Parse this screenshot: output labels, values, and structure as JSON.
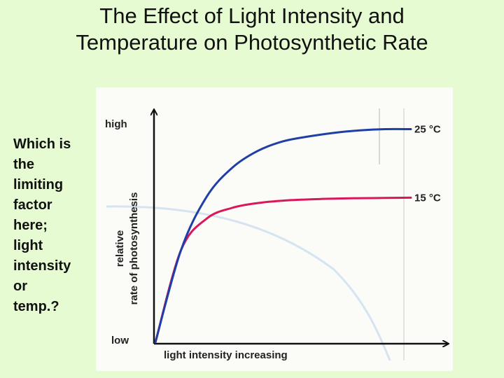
{
  "title": {
    "line1": "The Effect of Light Intensity and",
    "line2": "Temperature on Photosynthetic Rate"
  },
  "question": {
    "lines": [
      "Which is",
      "the",
      "limiting",
      "factor",
      "here;",
      "light",
      "intensity",
      "or",
      "temp.?"
    ]
  },
  "chart_data": {
    "type": "line",
    "title": "",
    "xlabel": "light intensity increasing",
    "ylabel_line1": "relative",
    "ylabel_line2": "rate of photosynthesis",
    "ytick_high": "high",
    "ytick_low": "low",
    "xlim": [
      0,
      100
    ],
    "ylim": [
      0,
      100
    ],
    "x": [
      0,
      10,
      20,
      30,
      40,
      50,
      60,
      70,
      80,
      90,
      100
    ],
    "series": [
      {
        "name": "25 °C",
        "label": "25  °C",
        "color": "#1f3fa6",
        "values": [
          0,
          38,
          60,
          72,
          79,
          83,
          85,
          86.5,
          87.5,
          88,
          88
        ]
      },
      {
        "name": "15 °C",
        "label": "15  °C",
        "color": "#d8185a",
        "values": [
          0,
          38,
          51,
          55.5,
          57.5,
          58.5,
          59,
          59.3,
          59.5,
          59.6,
          59.7
        ]
      }
    ],
    "grid": false
  }
}
